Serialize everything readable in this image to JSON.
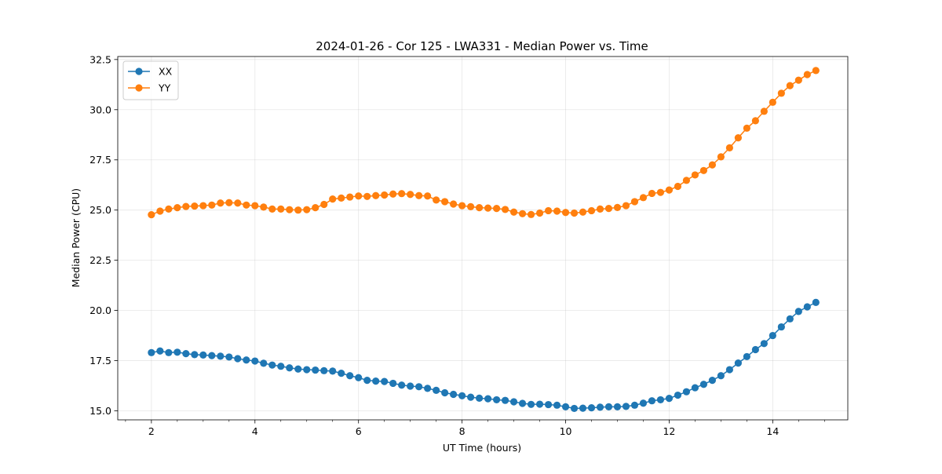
{
  "chart_data": {
    "type": "line",
    "title": "2024-01-26 - Cor 125 - LWA331 - Median Power vs. Time",
    "xlabel": "UT Time (hours)",
    "ylabel": "Median Power (CPU)",
    "xlim": [
      1.35,
      15.45
    ],
    "ylim": [
      14.55,
      32.65
    ],
    "x_major_ticks": [
      2,
      4,
      6,
      8,
      10,
      12,
      14
    ],
    "x_major_tick_labels": [
      "2",
      "4",
      "6",
      "8",
      "10",
      "12",
      "14"
    ],
    "x_minor_ticks": [
      1.5,
      2.5,
      3,
      3.5,
      4.5,
      5,
      5.5,
      6.5,
      7,
      7.5,
      8.5,
      9,
      9.5,
      10.5,
      11,
      11.5,
      12.5,
      13,
      13.5,
      14.5,
      15
    ],
    "y_major_ticks": [
      15.0,
      17.5,
      20.0,
      22.5,
      25.0,
      27.5,
      30.0,
      32.5
    ],
    "y_major_tick_labels": [
      "15.0",
      "17.5",
      "20.0",
      "22.5",
      "25.0",
      "27.5",
      "30.0",
      "32.5"
    ],
    "grid": true,
    "legend_position": "top-left",
    "x": [
      2.0,
      2.1667,
      2.3333,
      2.5,
      2.6667,
      2.8333,
      3.0,
      3.1667,
      3.3333,
      3.5,
      3.6667,
      3.8333,
      4.0,
      4.1667,
      4.3333,
      4.5,
      4.6667,
      4.8333,
      5.0,
      5.1667,
      5.3333,
      5.5,
      5.6667,
      5.8333,
      6.0,
      6.1667,
      6.3333,
      6.5,
      6.6667,
      6.8333,
      7.0,
      7.1667,
      7.3333,
      7.5,
      7.6667,
      7.8333,
      8.0,
      8.1667,
      8.3333,
      8.5,
      8.6667,
      8.8333,
      9.0,
      9.1667,
      9.3333,
      9.5,
      9.6667,
      9.8333,
      10.0,
      10.1667,
      10.3333,
      10.5,
      10.6667,
      10.8333,
      11.0,
      11.1667,
      11.3333,
      11.5,
      11.6667,
      11.8333,
      12.0,
      12.1667,
      12.3333,
      12.5,
      12.6667,
      12.8333,
      13.0,
      13.1667,
      13.3333,
      13.5,
      13.6667,
      13.8333,
      14.0,
      14.1667,
      14.3333,
      14.5,
      14.6667,
      14.8333
    ],
    "series": [
      {
        "name": "XX",
        "color": "#1f77b4",
        "values": [
          17.9,
          17.98,
          17.9,
          17.92,
          17.85,
          17.8,
          17.78,
          17.75,
          17.72,
          17.68,
          17.6,
          17.53,
          17.48,
          17.37,
          17.28,
          17.22,
          17.14,
          17.08,
          17.05,
          17.03,
          17.0,
          16.98,
          16.87,
          16.75,
          16.65,
          16.52,
          16.48,
          16.46,
          16.37,
          16.28,
          16.23,
          16.2,
          16.12,
          16.02,
          15.9,
          15.82,
          15.75,
          15.68,
          15.63,
          15.6,
          15.55,
          15.52,
          15.45,
          15.37,
          15.32,
          15.33,
          15.31,
          15.28,
          15.2,
          15.12,
          15.13,
          15.15,
          15.18,
          15.2,
          15.2,
          15.22,
          15.28,
          15.38,
          15.5,
          15.55,
          15.62,
          15.78,
          15.95,
          16.15,
          16.32,
          16.52,
          16.75,
          17.05,
          17.38,
          17.7,
          18.05,
          18.35,
          18.75,
          19.18,
          19.58,
          19.95,
          20.18,
          20.4
        ]
      },
      {
        "name": "YY",
        "color": "#ff7f0e",
        "values": [
          24.77,
          24.95,
          25.05,
          25.12,
          25.18,
          25.2,
          25.22,
          25.25,
          25.35,
          25.37,
          25.35,
          25.25,
          25.22,
          25.15,
          25.05,
          25.05,
          25.02,
          25.0,
          25.02,
          25.12,
          25.28,
          25.55,
          25.6,
          25.65,
          25.7,
          25.68,
          25.72,
          25.75,
          25.8,
          25.82,
          25.78,
          25.72,
          25.7,
          25.5,
          25.42,
          25.3,
          25.22,
          25.17,
          25.12,
          25.1,
          25.08,
          25.03,
          24.9,
          24.82,
          24.78,
          24.85,
          24.97,
          24.95,
          24.88,
          24.85,
          24.9,
          24.97,
          25.05,
          25.08,
          25.13,
          25.22,
          25.42,
          25.62,
          25.83,
          25.88,
          26.0,
          26.18,
          26.48,
          26.75,
          26.97,
          27.25,
          27.65,
          28.1,
          28.6,
          29.08,
          29.45,
          29.92,
          30.37,
          30.82,
          31.2,
          31.47,
          31.75,
          31.95
        ]
      }
    ]
  }
}
